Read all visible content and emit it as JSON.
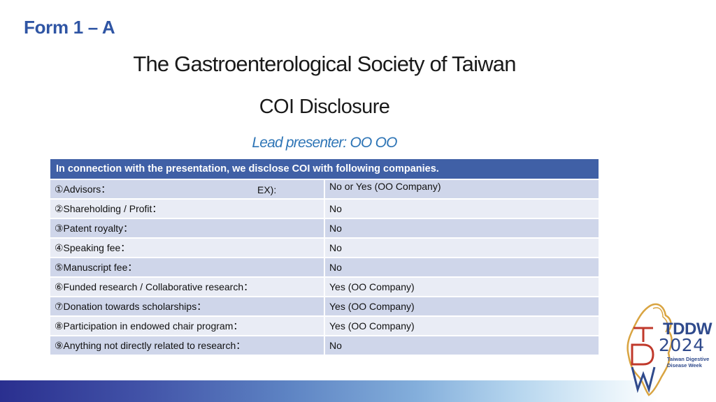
{
  "header": {
    "form_label": "Form 1 – A",
    "title": "The Gastroenterological Society of Taiwan",
    "subtitle": "COI Disclosure",
    "presenter": "Lead presenter: OO OO"
  },
  "table": {
    "header": "In connection with the presentation, we disclose COI with following companies.",
    "ex_label": "EX):",
    "rows": [
      {
        "item": "①Advisors：",
        "value": "No or Yes (OO Company)"
      },
      {
        "item": "②Shareholding / Profit：",
        "value": "No"
      },
      {
        "item": "③Patent royalty：",
        "value": "No"
      },
      {
        "item": "④Speaking fee：",
        "value": "No"
      },
      {
        "item": "⑤Manuscript fee：",
        "value": "No"
      },
      {
        "item": "⑥Funded research / Collaborative research：",
        "value": "Yes (OO Company)"
      },
      {
        "item": "⑦Donation towards scholarships：",
        "value": "Yes (OO Company)"
      },
      {
        "item": "⑧Participation in endowed chair program：",
        "value": "Yes (OO Company)"
      },
      {
        "item": "⑨Anything not directly related to research：",
        "value": "No"
      }
    ]
  },
  "logo": {
    "brand": "TDDW",
    "year": "2024",
    "line1": "Taiwan Digestive",
    "line2": "Disease Week",
    "colors": {
      "red": "#c0392b",
      "gold": "#d9a441",
      "navy": "#2f4a8c"
    }
  },
  "theme": {
    "accent": "#2f55a4",
    "table_header_bg": "#4060a6",
    "row_dark": "#cfd6ea",
    "row_light": "#e9ecf5",
    "presenter_color": "#2e75b6"
  }
}
